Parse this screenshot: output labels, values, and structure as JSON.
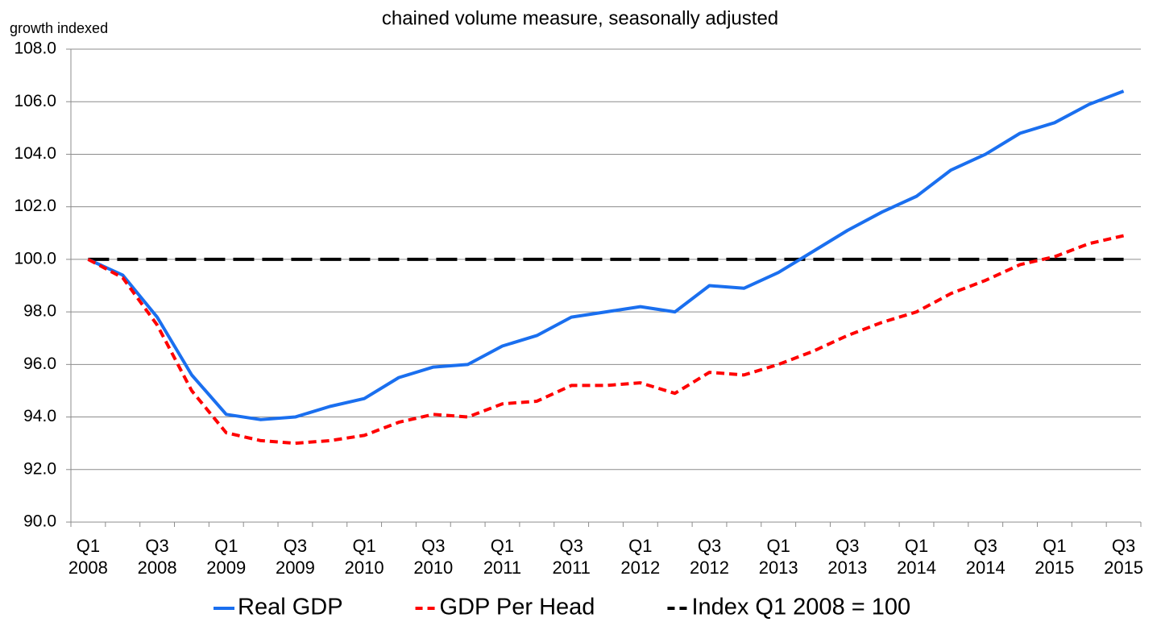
{
  "chart_data": {
    "type": "line",
    "title": "chained volume measure, seasonally adjusted",
    "y_label": "growth indexed",
    "categories": [
      "Q1 2008",
      null,
      "Q3 2008",
      null,
      "Q1 2009",
      null,
      "Q3 2009",
      null,
      "Q1 2010",
      null,
      "Q3 2010",
      null,
      "Q1 2011",
      null,
      "Q3 2011",
      null,
      "Q1 2012",
      null,
      "Q3 2012",
      null,
      "Q1 2013",
      null,
      "Q3 2013",
      null,
      "Q1 2014",
      null,
      "Q3 2014",
      null,
      "Q1 2015",
      null,
      "Q3 2015"
    ],
    "series": [
      {
        "name": "Real GDP",
        "color": "#1a6fef",
        "style": "solid",
        "values": [
          100,
          99.4,
          97.8,
          95.6,
          94.1,
          93.9,
          94.0,
          94.4,
          94.7,
          95.5,
          95.9,
          96.0,
          96.7,
          97.1,
          97.8,
          98.0,
          98.2,
          98.0,
          99.0,
          98.9,
          99.5,
          100.3,
          101.1,
          101.8,
          102.4,
          103.4,
          104.0,
          104.8,
          105.2,
          105.9,
          106.4
        ]
      },
      {
        "name": "GDP Per Head",
        "color": "#ff0000",
        "style": "dashed",
        "values": [
          100,
          99.3,
          97.5,
          95.0,
          93.4,
          93.1,
          93.0,
          93.1,
          93.3,
          93.8,
          94.1,
          94.0,
          94.5,
          94.6,
          95.2,
          95.2,
          95.3,
          94.9,
          95.7,
          95.6,
          96.0,
          96.5,
          97.1,
          97.6,
          98.0,
          98.7,
          99.2,
          99.8,
          100.1,
          100.6,
          100.9
        ]
      },
      {
        "name": "Index Q1 2008 = 100",
        "color": "#000000",
        "style": "longdash",
        "values": [
          100,
          100,
          100,
          100,
          100,
          100,
          100,
          100,
          100,
          100,
          100,
          100,
          100,
          100,
          100,
          100,
          100,
          100,
          100,
          100,
          100,
          100,
          100,
          100,
          100,
          100,
          100,
          100,
          100,
          100,
          100
        ]
      }
    ],
    "ylim": [
      90,
      108
    ],
    "yticks": [
      {
        "value": 90,
        "label": "90.0"
      },
      {
        "value": 92,
        "label": "92.0"
      },
      {
        "value": 94,
        "label": "94.0"
      },
      {
        "value": 96,
        "label": "96.0"
      },
      {
        "value": 98,
        "label": "98.0"
      },
      {
        "value": 100,
        "label": "100.0"
      },
      {
        "value": 102,
        "label": "102.0"
      },
      {
        "value": 104,
        "label": "104.0"
      },
      {
        "value": 106,
        "label": "106.0"
      },
      {
        "value": 108,
        "label": "108.0"
      }
    ],
    "grid": true,
    "legend": "bottom"
  }
}
